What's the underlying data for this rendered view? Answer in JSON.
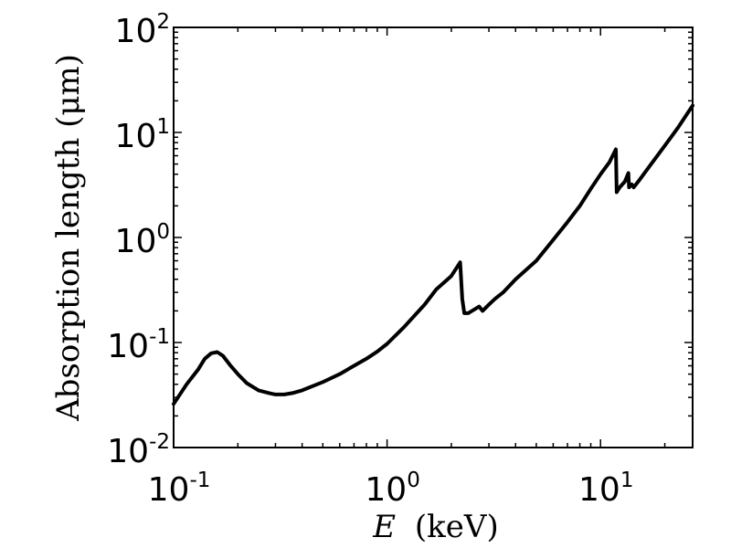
{
  "chart_data": {
    "type": "line",
    "xscale": "log",
    "yscale": "log",
    "xlim": [
      0.1,
      27
    ],
    "ylim": [
      0.01,
      100
    ],
    "grid": false,
    "legend": "none",
    "xlabel_var": "E",
    "xlabel_unit": "(keV)",
    "ylabel": "Absorption length (μm)",
    "x_ticks": [
      {
        "value": 0.1,
        "base": "10",
        "exp": "-1"
      },
      {
        "value": 1,
        "base": "10",
        "exp": "0"
      },
      {
        "value": 10,
        "base": "10",
        "exp": "1"
      }
    ],
    "y_ticks": [
      {
        "value": 0.01,
        "base": "10",
        "exp": "-2"
      },
      {
        "value": 0.1,
        "base": "10",
        "exp": "-1"
      },
      {
        "value": 1,
        "base": "10",
        "exp": "0"
      },
      {
        "value": 10,
        "base": "10",
        "exp": "1"
      },
      {
        "value": 100,
        "base": "10",
        "exp": "2"
      }
    ],
    "series": [
      {
        "color": "#000000",
        "x": [
          0.1,
          0.115,
          0.13,
          0.14,
          0.15,
          0.16,
          0.17,
          0.185,
          0.2,
          0.22,
          0.25,
          0.28,
          0.3,
          0.33,
          0.36,
          0.4,
          0.5,
          0.6,
          0.7,
          0.8,
          0.9,
          1.0,
          1.2,
          1.5,
          1.7,
          2.0,
          2.15,
          2.2,
          2.25,
          2.3,
          2.4,
          2.6,
          2.7,
          2.8,
          3.0,
          3.2,
          3.5,
          4.0,
          5.0,
          6.0,
          7.0,
          8.0,
          9.0,
          10.0,
          11.0,
          11.8,
          11.9,
          12.3,
          13.0,
          13.5,
          13.6,
          14.0,
          14.3,
          15.0,
          17.0,
          20.0,
          23.0,
          27.0
        ],
        "y": [
          0.026,
          0.04,
          0.055,
          0.07,
          0.079,
          0.081,
          0.075,
          0.06,
          0.05,
          0.041,
          0.035,
          0.033,
          0.032,
          0.032,
          0.033,
          0.035,
          0.042,
          0.05,
          0.06,
          0.07,
          0.082,
          0.097,
          0.14,
          0.23,
          0.32,
          0.43,
          0.54,
          0.58,
          0.26,
          0.19,
          0.19,
          0.21,
          0.22,
          0.2,
          0.23,
          0.26,
          0.3,
          0.4,
          0.6,
          0.95,
          1.4,
          2.0,
          2.9,
          4.0,
          5.2,
          6.9,
          2.7,
          3.0,
          3.4,
          4.1,
          3.0,
          3.2,
          3.0,
          3.4,
          4.8,
          7.5,
          11.0,
          18.0
        ]
      }
    ]
  }
}
